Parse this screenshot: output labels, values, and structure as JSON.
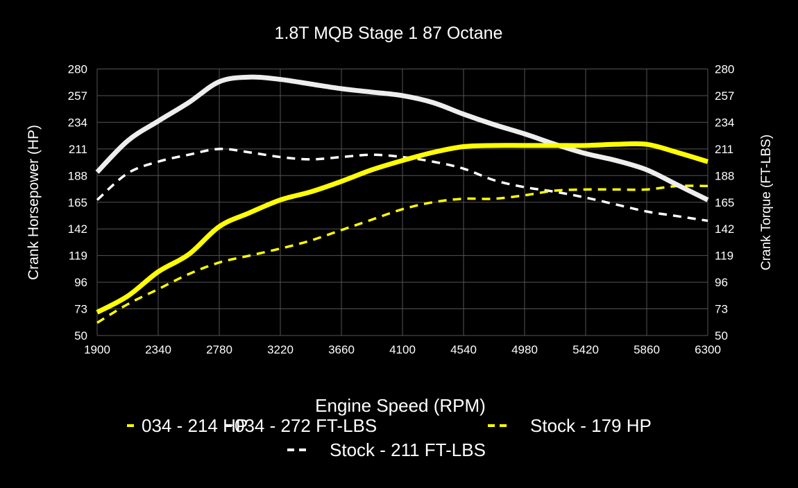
{
  "chart_data": {
    "type": "line",
    "title": "1.8T MQB Stage 1 87 Octane",
    "xlabel": "Engine Speed (RPM)",
    "ylabel": "Crank Horsepower (HP)",
    "y2label": "Crank Torque (FT-LBS)",
    "xlim": [
      1900,
      6300
    ],
    "ylim": [
      50,
      280
    ],
    "y2lim": [
      50,
      280
    ],
    "grid": true,
    "legend_placement": "bottom",
    "background": "#000000",
    "x_ticks": [
      "1900",
      "2340",
      "2780",
      "3220",
      "3660",
      "4100",
      "4540",
      "4980",
      "5420",
      "5860",
      "6300"
    ],
    "y_ticks": [
      "50",
      "73",
      "96",
      "119",
      "142",
      "165",
      "188",
      "211",
      "234",
      "257",
      "280"
    ],
    "y2_ticks": [
      "50",
      "73",
      "96",
      "119",
      "142",
      "165",
      "188",
      "211",
      "234",
      "257",
      "280"
    ],
    "x": [
      1900,
      2120,
      2340,
      2560,
      2780,
      3000,
      3220,
      3440,
      3660,
      3880,
      4100,
      4320,
      4540,
      4760,
      4980,
      5200,
      5420,
      5640,
      5860,
      6080,
      6300
    ],
    "series": [
      {
        "name": "034 - 214 HP",
        "color": "#ffff00",
        "style": "solid",
        "values": [
          70,
          84,
          105,
          120,
          144,
          156,
          167,
          174,
          183,
          193,
          201,
          208,
          213,
          214,
          214,
          214,
          214,
          215,
          215,
          208,
          200
        ]
      },
      {
        "name": "034 - 272 FT-LBS",
        "color": "#eeeeee",
        "style": "solid",
        "values": [
          191,
          218,
          235,
          251,
          269,
          273,
          271,
          267,
          263,
          260,
          257,
          251,
          241,
          232,
          224,
          215,
          207,
          201,
          193,
          180,
          167
        ]
      },
      {
        "name": "Stock - 179 HP",
        "color": "#ffff00",
        "style": "dashed",
        "values": [
          61,
          77,
          90,
          103,
          113,
          119,
          125,
          132,
          141,
          150,
          159,
          165,
          168,
          168,
          171,
          175,
          176,
          176,
          176,
          179,
          179
        ]
      },
      {
        "name": "Stock - 211 FT-LBS",
        "color": "#ffffff",
        "style": "dashed",
        "values": [
          167,
          190,
          200,
          206,
          211,
          208,
          204,
          202,
          204,
          206,
          204,
          200,
          194,
          184,
          178,
          174,
          169,
          163,
          157,
          153,
          149
        ]
      }
    ]
  }
}
